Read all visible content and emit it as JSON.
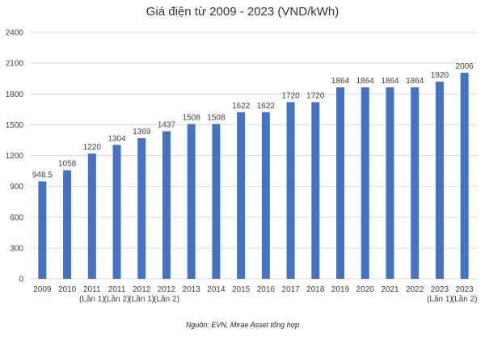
{
  "chart_data": {
    "type": "bar",
    "title": "Giá điện từ 2009 - 2023 (VND/kWh)",
    "categories": [
      [
        "2009"
      ],
      [
        "2010"
      ],
      [
        "2011",
        "(Lần 1)"
      ],
      [
        "2011",
        "(Lần 2)"
      ],
      [
        "2012",
        "(Lần 1)"
      ],
      [
        "2012",
        "(Lần 2)"
      ],
      [
        "2013"
      ],
      [
        "2014"
      ],
      [
        "2015"
      ],
      [
        "2016"
      ],
      [
        "2017"
      ],
      [
        "2018"
      ],
      [
        "2019"
      ],
      [
        "2020"
      ],
      [
        "2021"
      ],
      [
        "2022"
      ],
      [
        "2023",
        "(Lần 1)"
      ],
      [
        "2023",
        "(Lần 2)"
      ]
    ],
    "values": [
      948.5,
      1058,
      1220,
      1304,
      1369,
      1437,
      1508,
      1508,
      1622,
      1622,
      1720,
      1720,
      1864,
      1864,
      1864,
      1864,
      1920,
      2006
    ],
    "value_labels": [
      "948.5",
      "1058",
      "1220",
      "1304",
      "1369",
      "1437",
      "1508",
      "1508",
      "1622",
      "1622",
      "1720",
      "1720",
      "1864",
      "1864",
      "1864",
      "1864",
      "1920",
      "2006"
    ],
    "ylim": [
      0,
      2400
    ],
    "yticks": [
      0,
      300,
      600,
      900,
      1200,
      1500,
      1800,
      2100,
      2400
    ],
    "grid": true,
    "bar_color": "#4472C4",
    "grid_color": "#d9d9d9"
  },
  "source": "Nguồn: EVN, Mirae Asset tổng hợp"
}
